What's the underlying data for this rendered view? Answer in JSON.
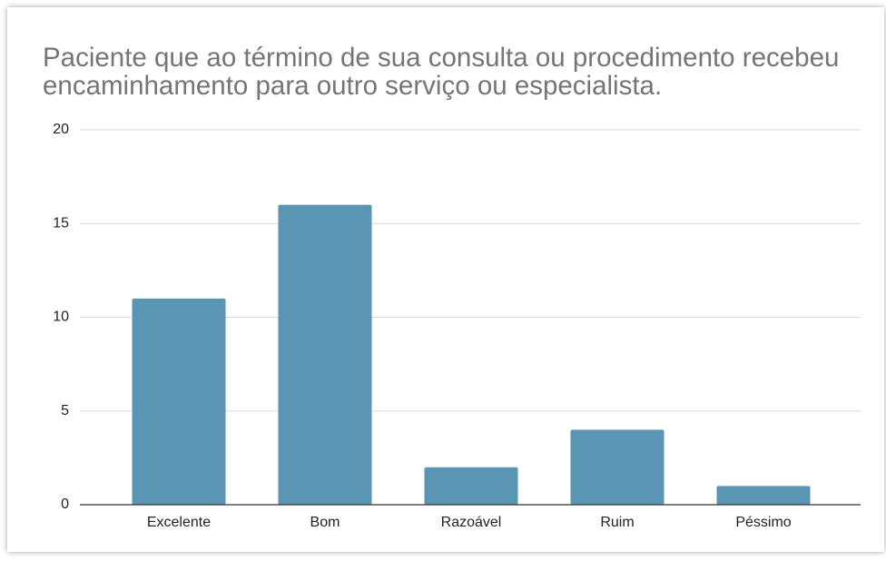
{
  "chart_data": {
    "type": "bar",
    "title": "Paciente que ao término de sua consulta ou procedimento recebeu encaminhamento para outro serviço ou especialista.",
    "categories": [
      "Excelente",
      "Bom",
      "Razoável",
      "Ruim",
      "Péssimo"
    ],
    "values": [
      11,
      16,
      2,
      4,
      1
    ],
    "color": "#5b95b4",
    "ylim": [
      0,
      20
    ],
    "yticks": [
      0,
      5,
      10,
      15,
      20
    ],
    "grid": true
  }
}
